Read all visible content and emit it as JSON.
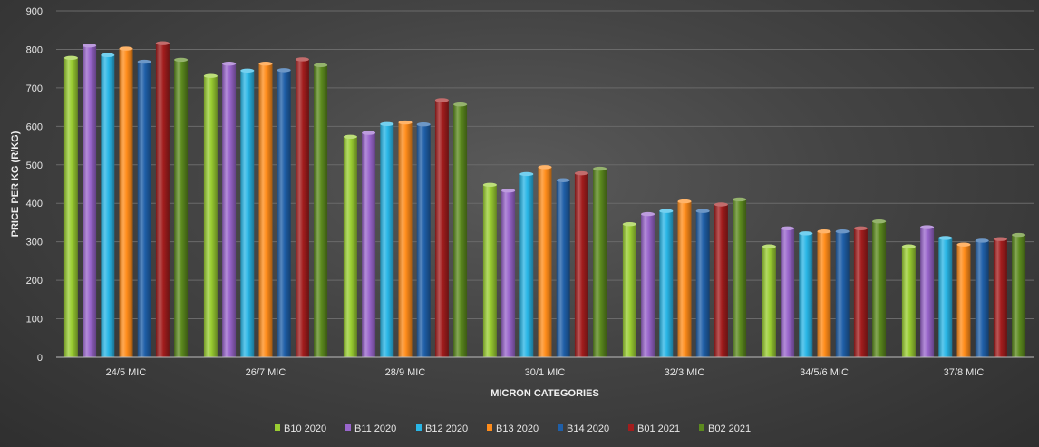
{
  "chart_data": {
    "type": "bar",
    "title": "",
    "xlabel": "MICRON CATEGORIES",
    "ylabel": "PRICE PER KG (R/KG)",
    "ylim": [
      0,
      900
    ],
    "yticks": [
      0,
      100,
      200,
      300,
      400,
      500,
      600,
      700,
      800,
      900
    ],
    "grid": true,
    "legend_position": "bottom",
    "categories": [
      "24/5 MIC",
      "26/7 MIC",
      "28/9 MIC",
      "30/1 MIC",
      "32/3 MIC",
      "34/5/6 MIC",
      "37/8 MIC"
    ],
    "series": [
      {
        "name": "B10 2020",
        "color": "#9acd32",
        "values": [
          778,
          731,
          573,
          448,
          346,
          288,
          288
        ]
      },
      {
        "name": "B11 2020",
        "color": "#9966cc",
        "values": [
          810,
          763,
          583,
          433,
          372,
          335,
          338
        ]
      },
      {
        "name": "B12 2020",
        "color": "#29b6e6",
        "values": [
          785,
          745,
          606,
          476,
          380,
          322,
          310
        ]
      },
      {
        "name": "B13 2020",
        "color": "#ff8c1a",
        "values": [
          802,
          763,
          610,
          494,
          405,
          327,
          293
        ]
      },
      {
        "name": "B14 2020",
        "color": "#1f5fa8",
        "values": [
          768,
          746,
          605,
          460,
          380,
          327,
          303
        ]
      },
      {
        "name": "B01 2021",
        "color": "#a31d1d",
        "values": [
          816,
          774,
          668,
          478,
          397,
          335,
          307
        ]
      },
      {
        "name": "B02 2021",
        "color": "#5c8a1e",
        "values": [
          773,
          759,
          657,
          490,
          410,
          353,
          318
        ]
      }
    ]
  }
}
